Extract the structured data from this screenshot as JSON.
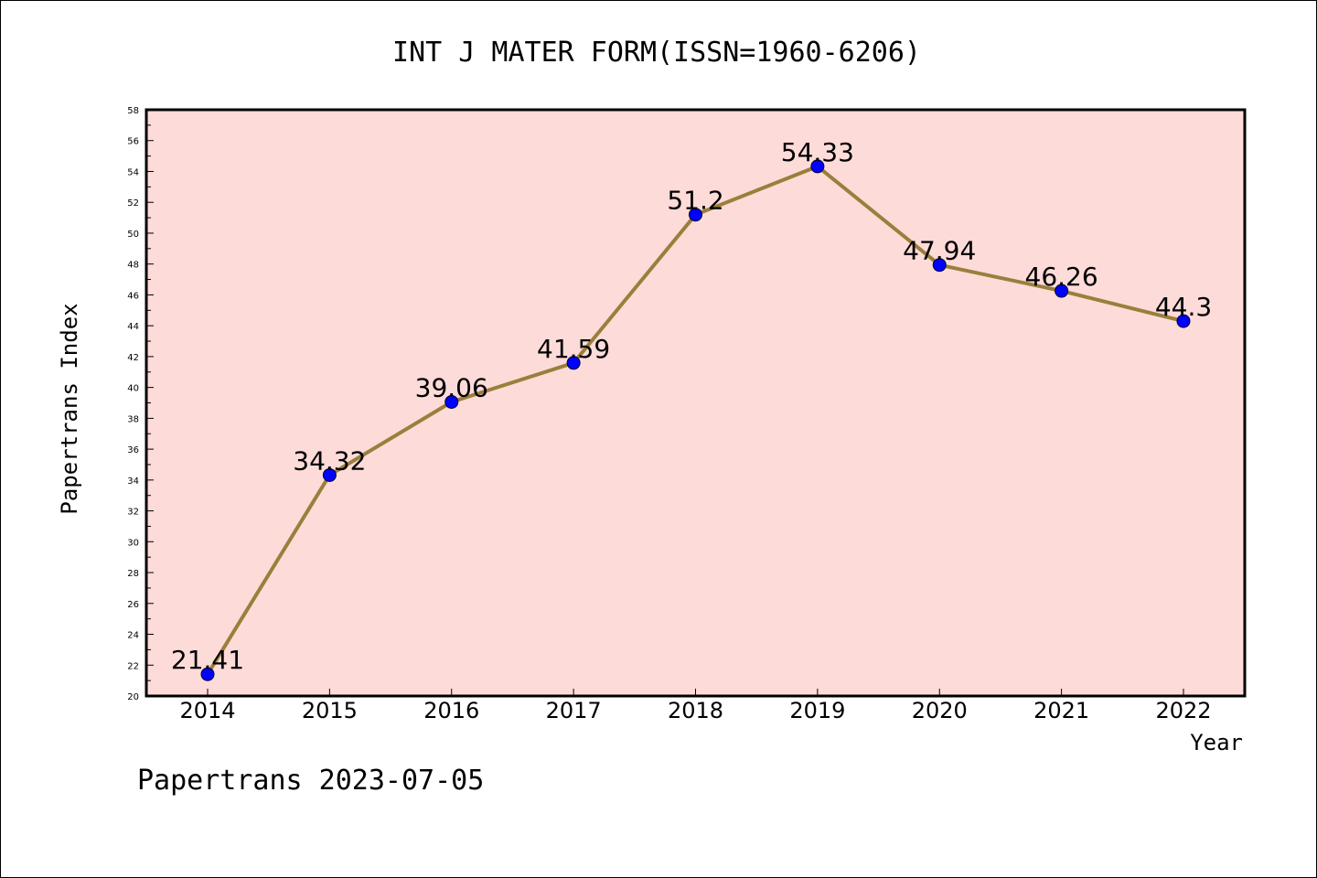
{
  "chart_data": {
    "type": "line",
    "title": "INT J MATER FORM(ISSN=1960-6206)",
    "xlabel": "Year",
    "ylabel": "Papertrans Index",
    "categories": [
      "2014",
      "2015",
      "2016",
      "2017",
      "2018",
      "2019",
      "2020",
      "2021",
      "2022"
    ],
    "series": [
      {
        "values": [
          21.41,
          34.32,
          39.06,
          41.59,
          51.2,
          54.33,
          47.94,
          46.26,
          44.3
        ],
        "data_labels": [
          "21.41",
          "34.32",
          "39.06",
          "41.59",
          "51.2",
          "54.33",
          "47.94",
          "46.26",
          "44.3"
        ]
      }
    ],
    "yticks": [
      "20",
      "22",
      "24",
      "26",
      "28",
      "30",
      "32",
      "34",
      "36",
      "38",
      "40",
      "42",
      "44",
      "46",
      "48",
      "50",
      "52",
      "54",
      "56",
      "58"
    ],
    "ylim": [
      20,
      58
    ],
    "grid": false,
    "legend": "none",
    "colors": {
      "plot_background": "#fddbd9",
      "line": "#9a7f3c",
      "marker": "#0000ff"
    }
  },
  "footer": "Papertrans 2023-07-05"
}
